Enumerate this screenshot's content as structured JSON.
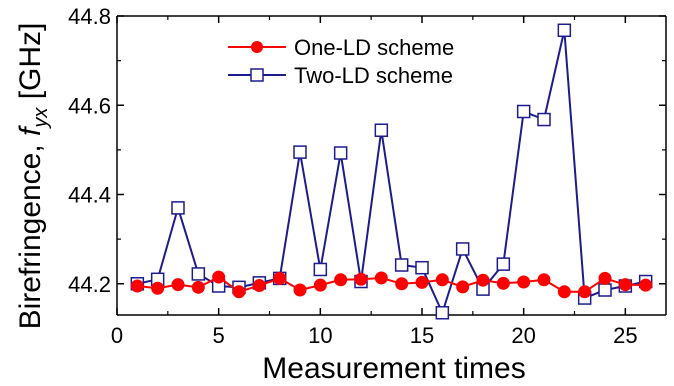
{
  "chart_data": {
    "type": "line",
    "xlabel": "Measurement times",
    "ylabel_prefix": "Birefringence, ",
    "ylabel_var": "f",
    "ylabel_sub": "yx",
    "ylabel_unit": " [GHz]",
    "xlim": [
      0,
      27
    ],
    "ylim": [
      44.13,
      44.8
    ],
    "xticks": [
      0,
      5,
      10,
      15,
      20,
      25
    ],
    "yticks": [
      44.2,
      44.4,
      44.6,
      44.8
    ],
    "xtick_labels": [
      "0",
      "5",
      "10",
      "15",
      "20",
      "25"
    ],
    "ytick_labels": [
      "44.2",
      "44.4",
      "44.6",
      "44.8"
    ],
    "legend_position": "top-center",
    "series": [
      {
        "name": "One-LD scheme",
        "color": "#ff0000",
        "marker": "filled-circle",
        "x": [
          1,
          2,
          3,
          4,
          5,
          6,
          7,
          8,
          9,
          10,
          11,
          12,
          13,
          14,
          15,
          16,
          17,
          18,
          19,
          20,
          21,
          22,
          23,
          24,
          25,
          26
        ],
        "y": [
          44.195,
          44.19,
          44.198,
          44.192,
          44.215,
          44.182,
          44.196,
          44.212,
          44.186,
          44.197,
          44.209,
          44.21,
          44.213,
          44.2,
          44.203,
          44.209,
          44.193,
          44.208,
          44.201,
          44.204,
          44.209,
          44.182,
          44.182,
          44.212,
          44.198,
          44.197
        ]
      },
      {
        "name": "Two-LD scheme",
        "color": "#1c1c8c",
        "marker": "open-square",
        "x": [
          1,
          2,
          3,
          4,
          5,
          6,
          7,
          8,
          9,
          10,
          11,
          12,
          13,
          14,
          15,
          16,
          17,
          18,
          19,
          20,
          21,
          22,
          23,
          24,
          25,
          26
        ],
        "y": [
          44.2,
          44.21,
          44.37,
          44.222,
          44.195,
          44.192,
          44.202,
          44.212,
          44.495,
          44.232,
          44.493,
          44.205,
          44.544,
          44.242,
          44.236,
          44.135,
          44.278,
          44.188,
          44.244,
          44.586,
          44.568,
          44.768,
          44.168,
          44.186,
          44.195,
          44.205
        ]
      }
    ]
  }
}
